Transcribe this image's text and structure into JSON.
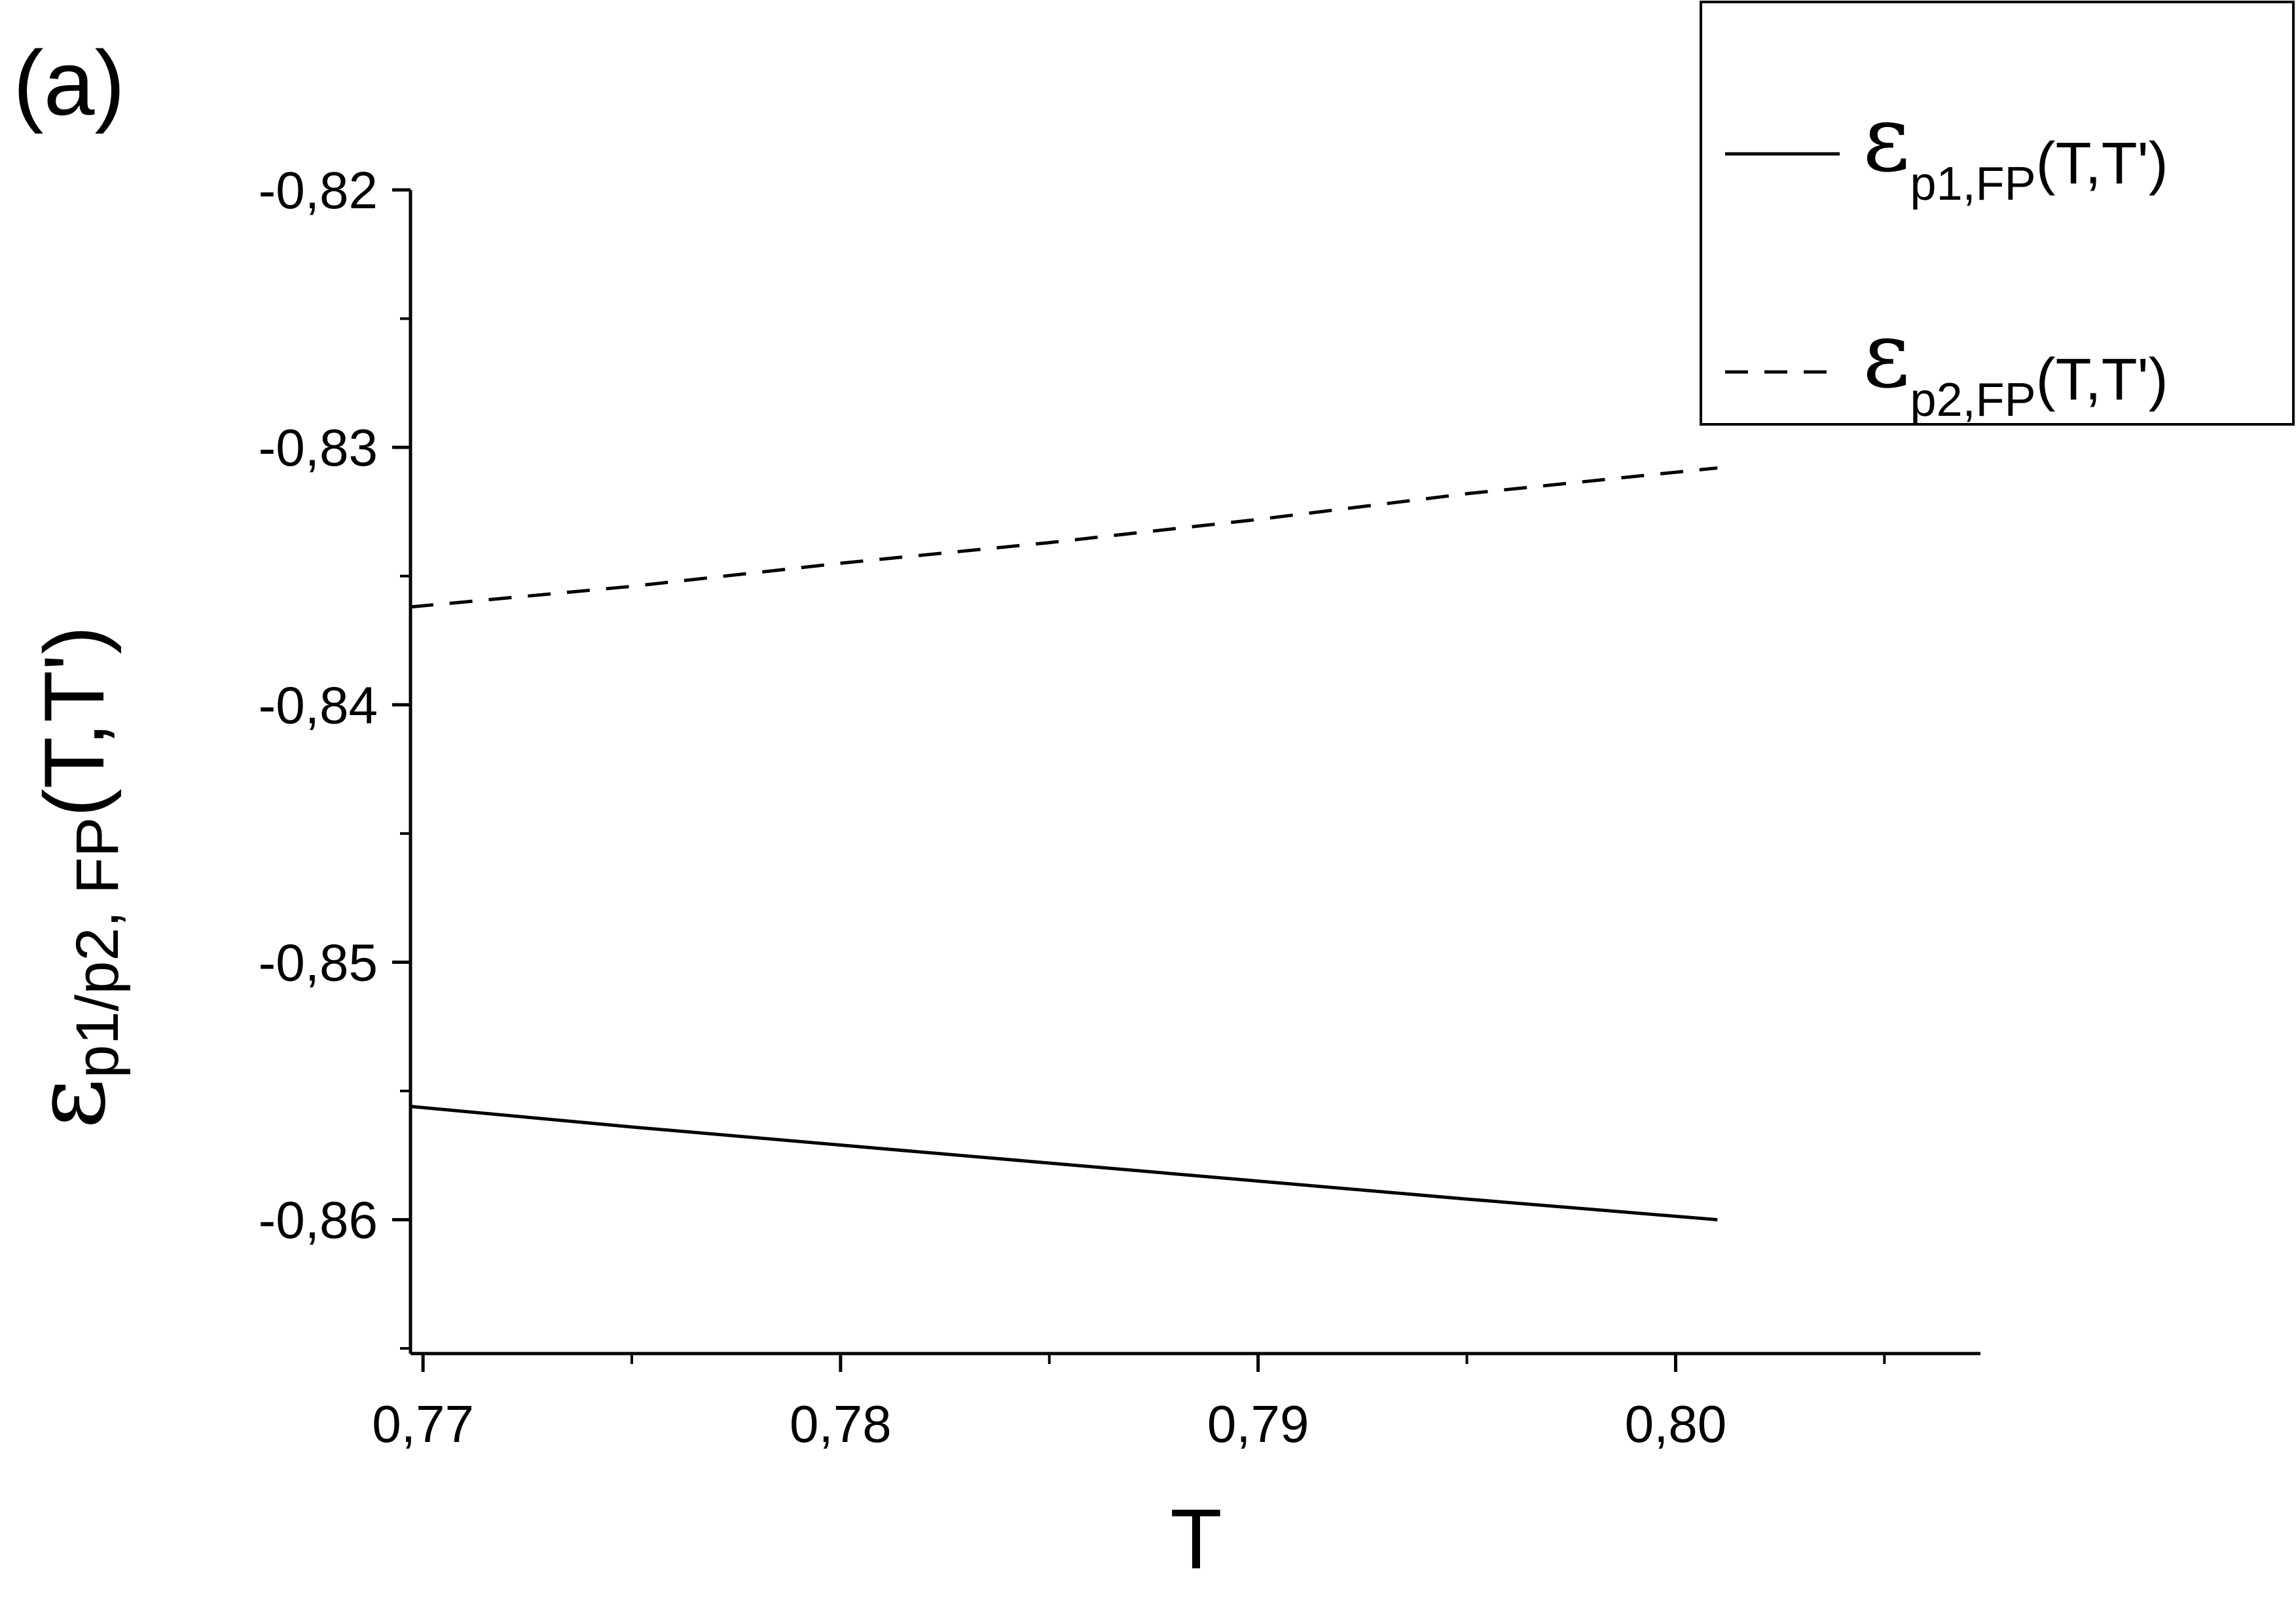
{
  "panel_label": "(a)",
  "chart_data": {
    "type": "line",
    "xlabel": "T",
    "ylabel": {
      "symbol": "ε",
      "subscript": "p1/p2, FP",
      "suffix": "(T,T')"
    },
    "xlim": [
      0.7697,
      0.8073
    ],
    "ylim": [
      -0.8652,
      -0.82
    ],
    "x_ticks": [
      {
        "value": 0.77,
        "label": "0,77"
      },
      {
        "value": 0.78,
        "label": "0,78"
      },
      {
        "value": 0.79,
        "label": "0,79"
      },
      {
        "value": 0.8,
        "label": "0,80"
      }
    ],
    "y_ticks": [
      {
        "value": -0.82,
        "label": "-0,82"
      },
      {
        "value": -0.83,
        "label": "-0,83"
      },
      {
        "value": -0.84,
        "label": "-0,84"
      },
      {
        "value": -0.85,
        "label": "-0,85"
      },
      {
        "value": -0.86,
        "label": "-0,86"
      }
    ],
    "x_minor_ticks": [
      0.775,
      0.785,
      0.795,
      0.805
    ],
    "y_minor_ticks": [
      -0.825,
      -0.835,
      -0.845,
      -0.855,
      -0.865
    ],
    "series": [
      {
        "name": {
          "symbol": "ε",
          "subscript": "p1,FP",
          "suffix": "(T,T')"
        },
        "style": "solid",
        "color": "#000000",
        "x": [
          0.7697,
          0.775,
          0.78,
          0.785,
          0.79,
          0.795,
          0.801
        ],
        "y": [
          -0.8556,
          -0.8564,
          -0.8571,
          -0.8578,
          -0.8585,
          -0.8592,
          -0.86
        ]
      },
      {
        "name": {
          "symbol": "ε",
          "subscript": "p2,FP",
          "suffix": "(T,T')"
        },
        "style": "dashed",
        "color": "#000000",
        "x": [
          0.7697,
          0.775,
          0.78,
          0.785,
          0.79,
          0.795,
          0.801
        ],
        "y": [
          -0.8362,
          -0.8354,
          -0.8345,
          -0.8337,
          -0.8328,
          -0.8318,
          -0.8308
        ]
      }
    ],
    "legend": "top-right",
    "grid": false
  }
}
